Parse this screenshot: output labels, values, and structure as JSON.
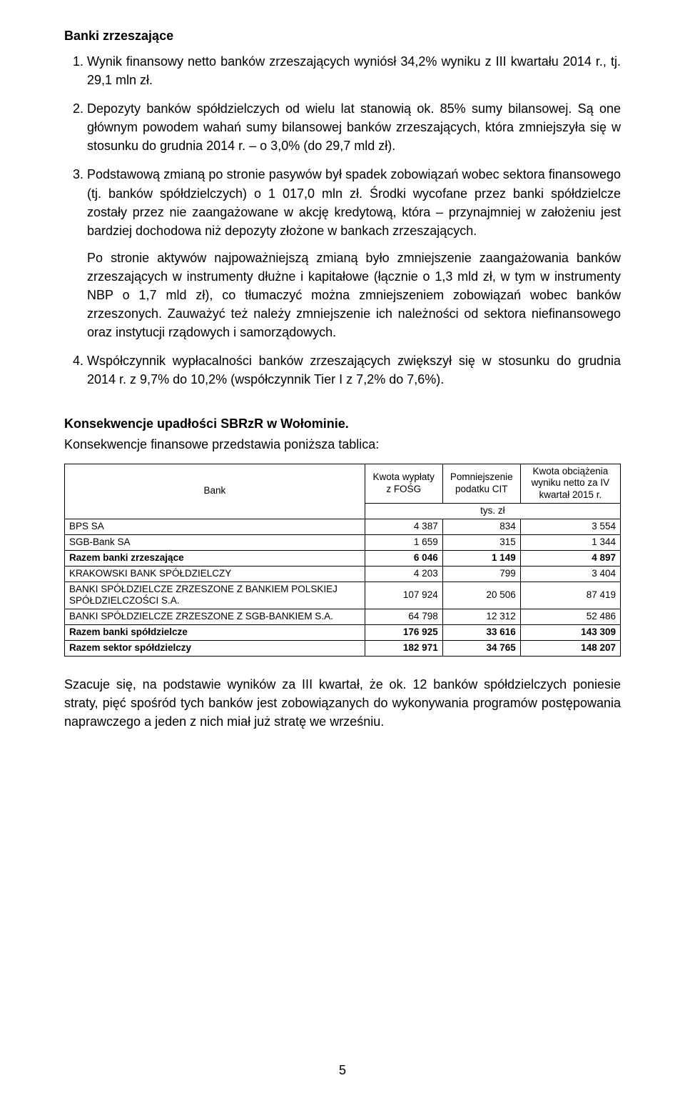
{
  "heading": "Banki zrzeszające",
  "list": {
    "start": 1,
    "items": [
      {
        "text": "Wynik finansowy netto banków zrzeszających wyniósł 34,2% wyniku z III kwartału 2014 r., tj. 29,1 mln zł."
      },
      {
        "text": "Depozyty banków spółdzielczych od wielu lat stanowią ok. 85% sumy bilansowej. Są one głównym powodem wahań sumy bilansowej banków zrzeszających, która zmniejszyła się w stosunku do grudnia 2014 r. – o 3,0% (do 29,7 mld zł)."
      },
      {
        "text": "Podstawową zmianą po stronie pasywów był spadek zobowiązań wobec sektora finansowego (tj. banków spółdzielczych) o 1 017,0 mln zł. Środki wycofane przez banki spółdzielcze zostały przez nie zaangażowane w akcję kredytową, która – przynajmniej w założeniu jest bardziej dochodowa niż depozyty złożone w bankach zrzeszających.",
        "follow": "Po stronie aktywów najpoważniejszą zmianą było zmniejszenie zaangażowania banków zrzeszających w instrumenty dłużne i kapitałowe (łącznie o 1,3 mld zł, w tym w instrumenty NBP o 1,7 mld zł), co tłumaczyć można zmniejszeniem zobowiązań wobec banków zrzeszonych. Zauważyć też należy zmniejszenie ich należności od sektora niefinansowego oraz instytucji rządowych i samorządowych."
      },
      {
        "text": "Współczynnik wypłacalności banków zrzeszających zwiększył się w stosunku do grudnia 2014 r. z 9,7% do 10,2% (współczynnik Tier I z 7,2% do 7,6%)."
      }
    ]
  },
  "section": {
    "heading": "Konsekwencje upadłości SBRzR w Wołominie.",
    "subline": "Konsekwencje finansowe przedstawia poniższa tablica:"
  },
  "table": {
    "headers": {
      "bank": "Bank",
      "col1": "Kwota wypłaty z FOŚG",
      "col2": "Pomniejszenie podatku CIT",
      "col3": "Kwota obciążenia wyniku netto za IV kwartał 2015 r."
    },
    "unit": "tys. zł",
    "rows": [
      {
        "label": "BPS SA",
        "c1": "4 387",
        "c2": "834",
        "c3": "3 554",
        "bold": false
      },
      {
        "label": "SGB-Bank SA",
        "c1": "1 659",
        "c2": "315",
        "c3": "1 344",
        "bold": false
      },
      {
        "label": "Razem banki zrzeszające",
        "c1": "6 046",
        "c2": "1 149",
        "c3": "4 897",
        "bold": true
      },
      {
        "label": "KRAKOWSKI BANK SPÓŁDZIELCZY",
        "c1": "4 203",
        "c2": "799",
        "c3": "3 404",
        "bold": false
      },
      {
        "label": "BANKI SPÓŁDZIELCZE ZRZESZONE Z BANKIEM POLSKIEJ SPÓŁDZIELCZOŚCI S.A.",
        "c1": "107 924",
        "c2": "20 506",
        "c3": "87 419",
        "bold": false
      },
      {
        "label": "BANKI SPÓŁDZIELCZE ZRZESZONE Z SGB-BANKIEM S.A.",
        "c1": "64 798",
        "c2": "12 312",
        "c3": "52 486",
        "bold": false
      },
      {
        "label": "Razem banki spółdzielcze",
        "c1": "176 925",
        "c2": "33 616",
        "c3": "143 309",
        "bold": true
      },
      {
        "label": "Razem sektor spółdzielczy",
        "c1": "182 971",
        "c2": "34 765",
        "c3": "148 207",
        "bold": true
      }
    ],
    "col_widths": {
      "bank": "54%",
      "col1": "14%",
      "col2": "14%",
      "col3": "18%"
    }
  },
  "closing": "Szacuje się, na podstawie wyników za III kwartał, że ok. 12 banków spółdzielczych poniesie straty, pięć spośród tych banków jest zobowiązanych do wykonywania programów postępowania naprawczego a jeden z nich miał już stratę we wrześniu.",
  "page_number": "5"
}
